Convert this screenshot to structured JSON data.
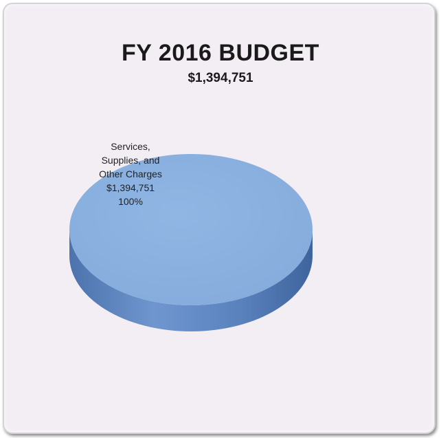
{
  "header": {
    "title": "FY 2016 BUDGET",
    "subtitle": "$1,394,751"
  },
  "chart_data": {
    "type": "pie",
    "title": "FY 2016 BUDGET",
    "subtitle": "$1,394,751",
    "categories": [
      "Services, Supplies, and Other Charges"
    ],
    "values": [
      1394751
    ],
    "slices": [
      {
        "label_lines": [
          "Services,",
          "Supplies, and",
          "Other Charges",
          "$1,394,751",
          "100%"
        ],
        "value": 1394751,
        "percent": 100,
        "color": "#8db3e2"
      }
    ]
  },
  "colors": {
    "panel": "#f3eef4",
    "slice_top": "#8db3e2",
    "slice_side": "#5f86c0"
  }
}
